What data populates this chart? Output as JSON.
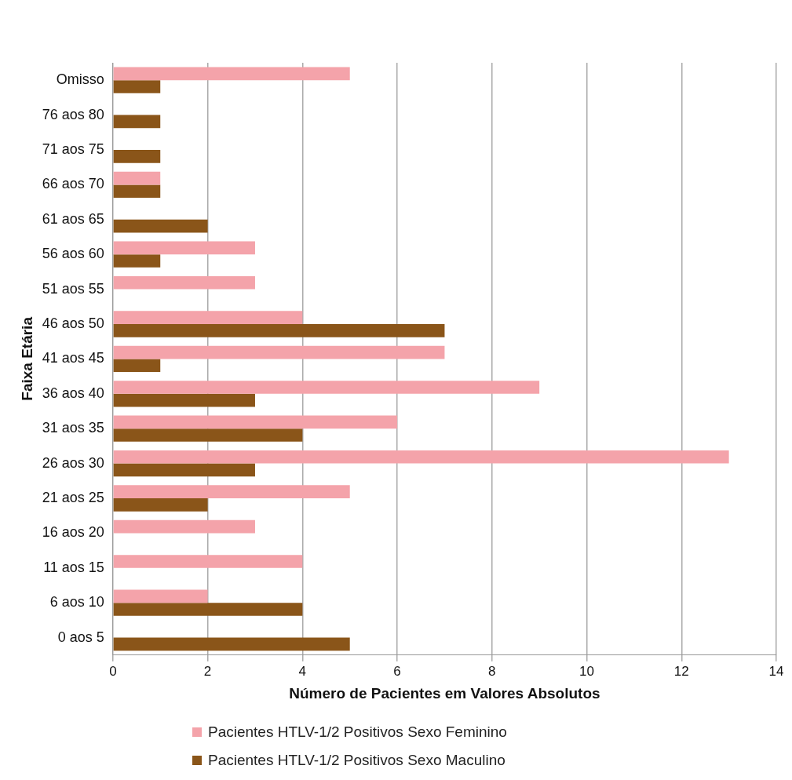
{
  "chart_data": {
    "type": "bar",
    "orientation": "horizontal",
    "xlabel": "Número de Pacientes em Valores Absolutos",
    "ylabel": "Faixa Etária",
    "categories": [
      "Omisso",
      "76 aos 80",
      "71 aos 75",
      "66 aos 70",
      "61 aos 65",
      "56 aos 60",
      "51 aos 55",
      "46 aos 50",
      "41 aos 45",
      "36 aos 40",
      "31 aos 35",
      "26 aos 30",
      "21 aos 25",
      "16 aos 20",
      "11 aos 15",
      "6 aos 10",
      "0 aos 5"
    ],
    "series": [
      {
        "name": "Pacientes HTLV-1/2 Positivos Sexo Feminino",
        "color": "#f4a3aa",
        "values": [
          5,
          0,
          0,
          1,
          0,
          3,
          3,
          4,
          7,
          9,
          6,
          13,
          5,
          3,
          4,
          2,
          0
        ]
      },
      {
        "name": "Pacientes HTLV-1/2 Positivos Sexo Maculino",
        "color": "#8a5519",
        "values": [
          1,
          1,
          1,
          1,
          2,
          1,
          0,
          7,
          1,
          3,
          4,
          3,
          2,
          0,
          0,
          4,
          5
        ]
      }
    ],
    "xlim": [
      0,
      14
    ],
    "xticks": [
      0,
      2,
      4,
      6,
      8,
      10,
      12,
      14
    ],
    "grid": "x",
    "legend": "bottom"
  }
}
